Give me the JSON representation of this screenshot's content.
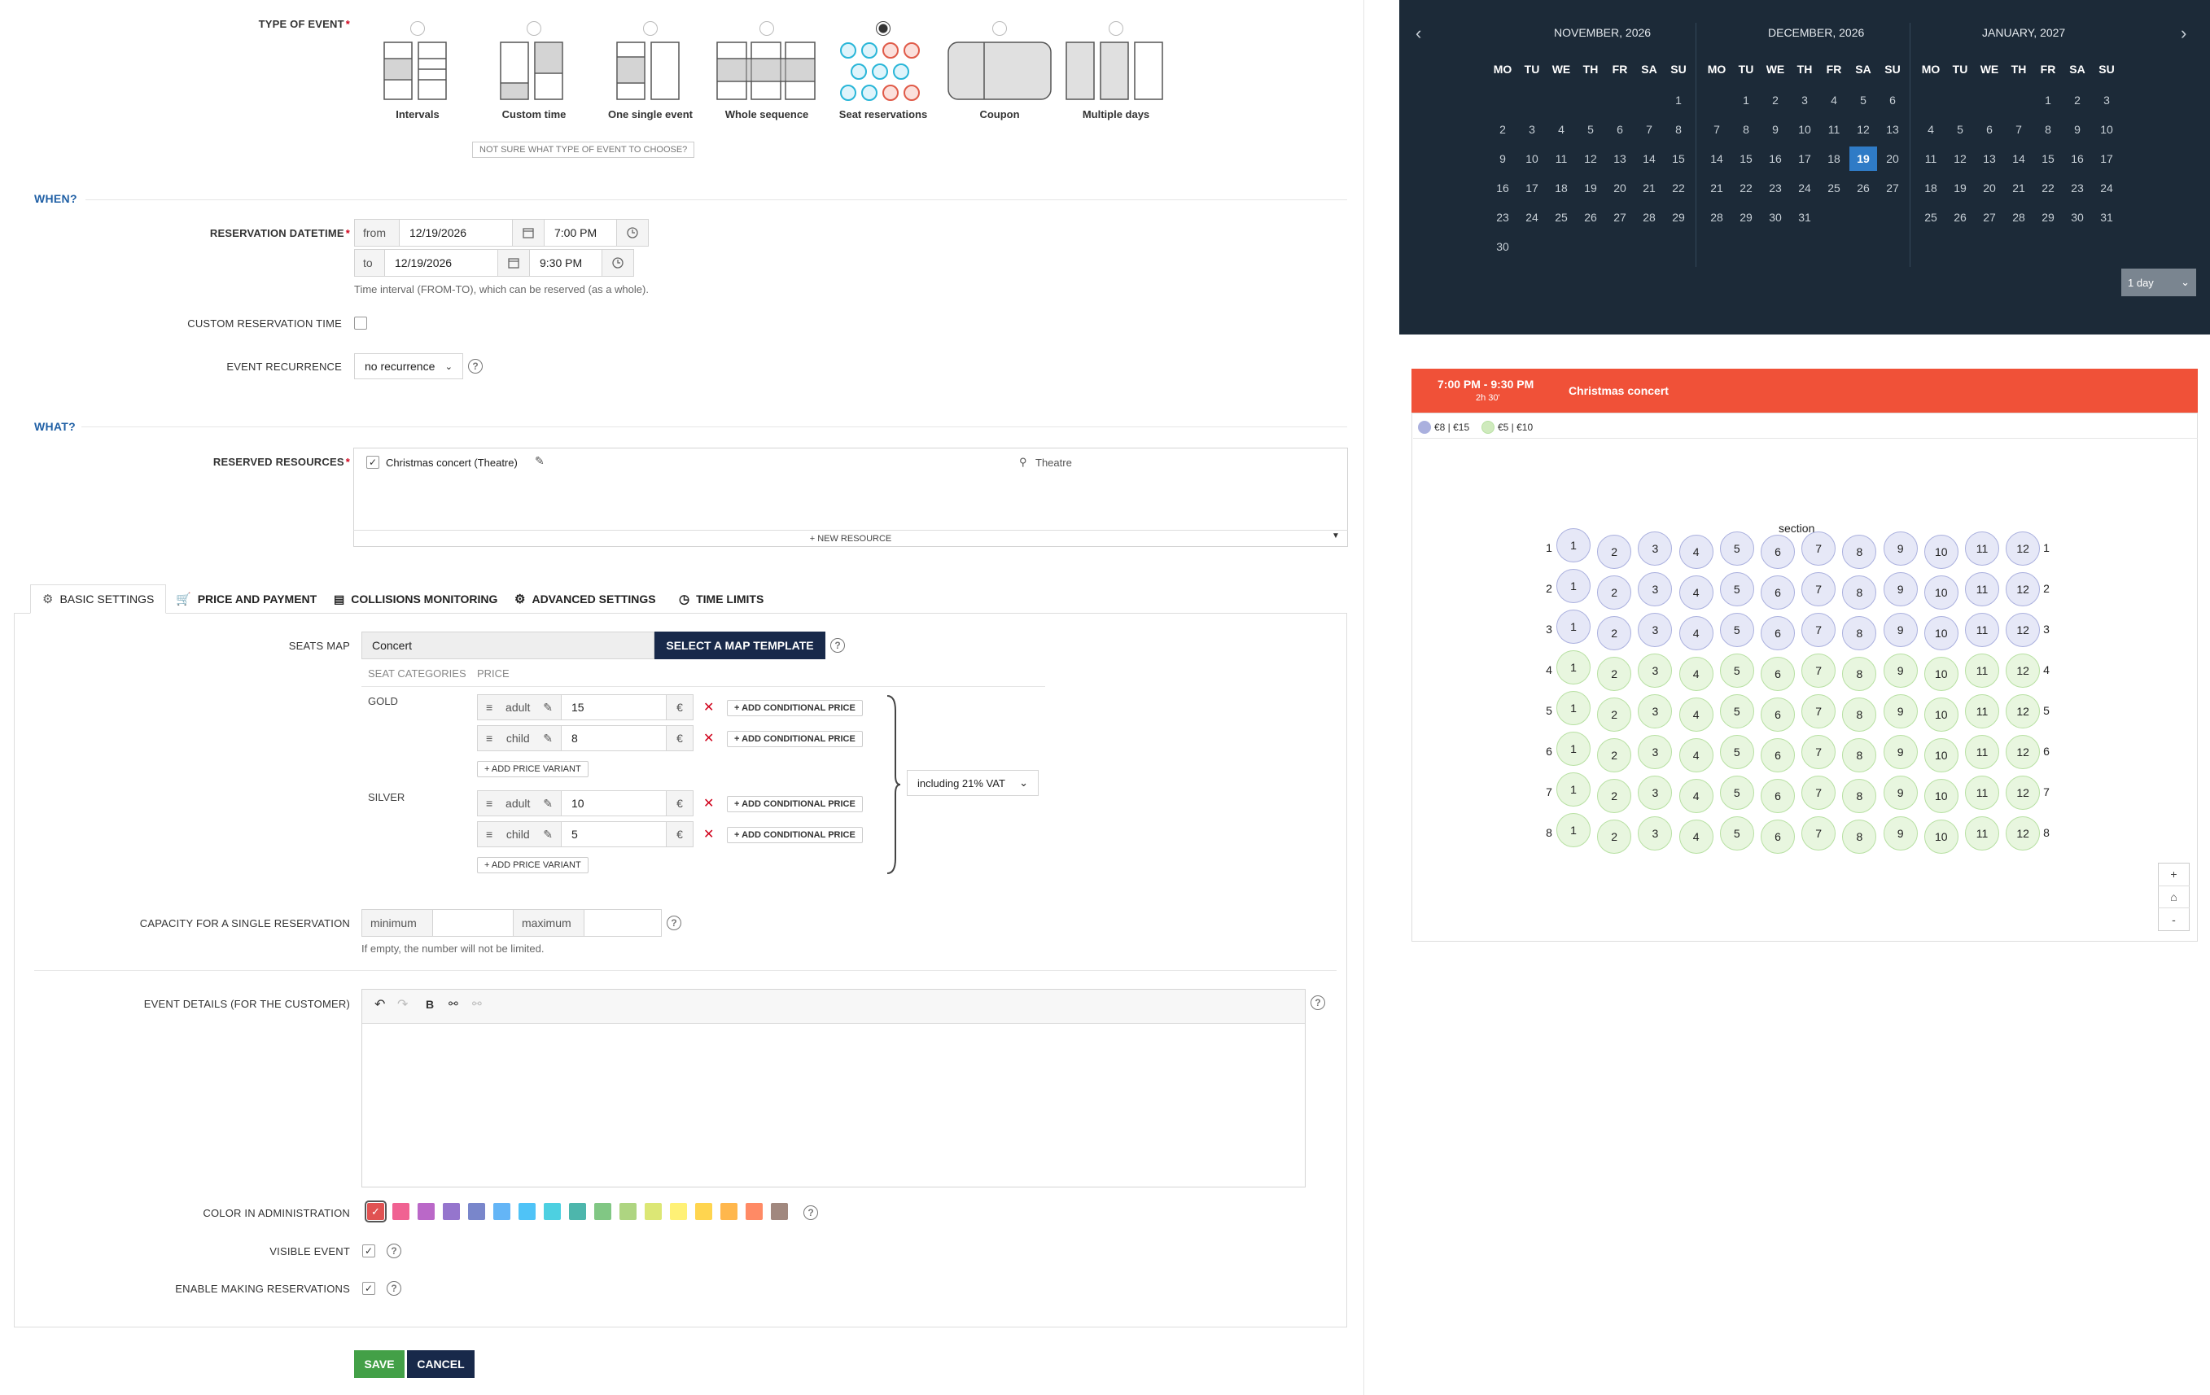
{
  "type_of_event": {
    "label": "TYPE OF EVENT",
    "options": [
      {
        "label": "Intervals",
        "selected": false
      },
      {
        "label": "Custom time",
        "selected": false
      },
      {
        "label": "One single event",
        "selected": false
      },
      {
        "label": "Whole sequence",
        "selected": false
      },
      {
        "label": "Seat reservations",
        "selected": true
      },
      {
        "label": "Coupon",
        "selected": false
      },
      {
        "label": "Multiple days",
        "selected": false
      }
    ],
    "help_link": "NOT SURE WHAT TYPE OF EVENT TO CHOOSE?"
  },
  "when": {
    "section_title": "WHEN?",
    "reservation_datetime_label": "RESERVATION DATETIME",
    "from_label": "from",
    "from_date": "12/19/2026",
    "from_time": "7:00 PM",
    "to_label": "to",
    "to_date": "12/19/2026",
    "to_time": "9:30 PM",
    "interval_hint": "Time interval (FROM-TO), which can be reserved (as a whole).",
    "custom_time_label": "CUSTOM RESERVATION TIME",
    "recurrence_label": "EVENT RECURRENCE",
    "recurrence_value": "no recurrence"
  },
  "what": {
    "section_title": "WHAT?",
    "resources_label": "RESERVED RESOURCES",
    "resource_name": "Christmas concert (Theatre)",
    "resource_location": "Theatre",
    "new_resource": "+ NEW RESOURCE"
  },
  "tabs": [
    {
      "label": "BASIC SETTINGS",
      "icon": "gear-icon"
    },
    {
      "label": "PRICE AND PAYMENT",
      "icon": "cart-icon"
    },
    {
      "label": "COLLISIONS MONITORING",
      "icon": "calendar-icon"
    },
    {
      "label": "ADVANCED SETTINGS",
      "icon": "gears-icon"
    },
    {
      "label": "TIME LIMITS",
      "icon": "clock-icon"
    }
  ],
  "basic": {
    "seats_map_label": "SEATS MAP",
    "seats_map_value": "Concert",
    "select_template_button": "SELECT A MAP TEMPLATE",
    "seat_categories_header": "SEAT CATEGORIES",
    "price_header": "PRICE",
    "categories": [
      {
        "name": "GOLD",
        "variants": [
          {
            "name": "adult",
            "price": "15"
          },
          {
            "name": "child",
            "price": "8"
          }
        ]
      },
      {
        "name": "SILVER",
        "variants": [
          {
            "name": "adult",
            "price": "10"
          },
          {
            "name": "child",
            "price": "5"
          }
        ]
      }
    ],
    "currency": "€",
    "add_conditional_price": "ADD CONDITIONAL PRICE",
    "add_price_variant": "ADD PRICE VARIANT",
    "vat": "including 21% VAT",
    "capacity_label": "CAPACITY FOR A SINGLE RESERVATION",
    "minimum_label": "minimum",
    "maximum_label": "maximum",
    "capacity_hint": "If empty, the number will not be limited.",
    "details_label": "EVENT DETAILS (FOR THE CUSTOMER)",
    "color_label": "COLOR IN ADMINISTRATION",
    "colors": [
      "#e05252",
      "#f06292",
      "#ba68c8",
      "#9575cd",
      "#7986cb",
      "#64b5f6",
      "#4fc3f7",
      "#4dd0e1",
      "#4db6ac",
      "#81c784",
      "#aed581",
      "#dce775",
      "#fff176",
      "#ffd54f",
      "#ffb74d",
      "#ff8a65",
      "#a1887f"
    ],
    "visible_label": "VISIBLE EVENT",
    "enable_label": "ENABLE MAKING RESERVATIONS"
  },
  "buttons": {
    "save": "SAVE",
    "cancel": "CANCEL"
  },
  "calendar": {
    "months": [
      {
        "title": "NOVEMBER, 2026",
        "offset": 6,
        "days": 30
      },
      {
        "title": "DECEMBER, 2026",
        "offset": 1,
        "days": 31
      },
      {
        "title": "JANUARY, 2027",
        "offset": 4,
        "days": 31
      }
    ],
    "weekdays": [
      "MO",
      "TU",
      "WE",
      "TH",
      "FR",
      "SA",
      "SU"
    ],
    "selected": "19",
    "range_select": "1 day"
  },
  "event_preview": {
    "time": "7:00 PM - 9:30 PM",
    "duration": "2h 30'",
    "title": "Christmas concert",
    "legend": [
      {
        "label": "€8 | €15",
        "color": "#aab0de"
      },
      {
        "label": "€5 | €10",
        "color": "#b7e0a2"
      }
    ],
    "section_label": "section",
    "rows": [
      "1",
      "2",
      "3",
      "4",
      "5",
      "6",
      "7",
      "8"
    ],
    "seats_per_row": 12,
    "gold_rows": 3,
    "zoom_in": "+",
    "zoom_out": "-"
  }
}
